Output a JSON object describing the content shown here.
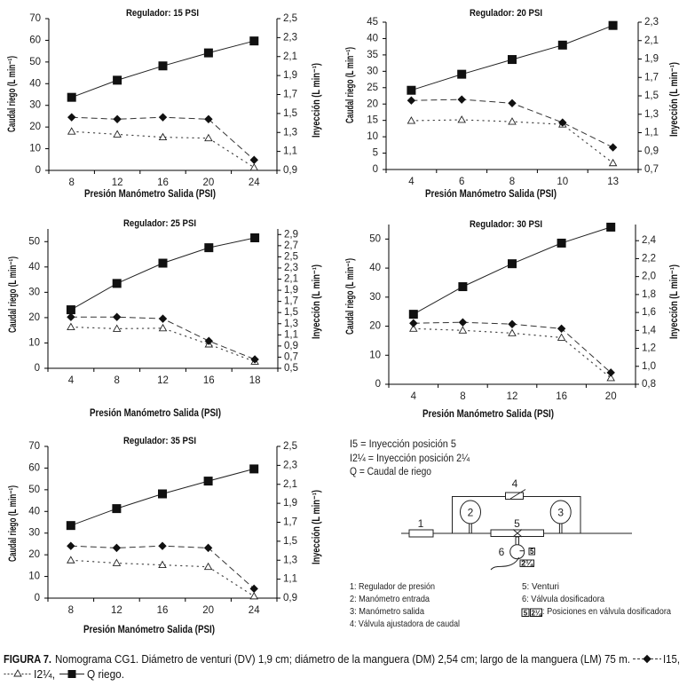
{
  "chart_data": [
    {
      "type": "line",
      "title": "Regulador: 15 PSI",
      "xlabel": "Presión Manómetro Salida (PSI)",
      "ylabel": "Caudal riego (L min⁻¹)",
      "y2label": "Inyección (L min⁻¹)",
      "categories": [
        "8",
        "12",
        "16",
        "20",
        "24"
      ],
      "ylim": [
        0,
        70
      ],
      "yticks": [
        0,
        10,
        20,
        30,
        40,
        50,
        60,
        70
      ],
      "y2lim": [
        0.9,
        2.5
      ],
      "y2ticks": [
        0.9,
        1.1,
        1.3,
        1.5,
        1.7,
        1.9,
        2.1,
        2.3,
        2.5
      ],
      "y2tick_labels": [
        "0,9",
        "1,1",
        "1,3",
        "1,5",
        "1,7",
        "1,9",
        "2,1",
        "2,3",
        "2,5"
      ],
      "grid": false,
      "series": [
        {
          "name": "Q riego",
          "axis": "left",
          "marker": "square",
          "line": "solid",
          "values": [
            33.7,
            41.6,
            48.2,
            54.2,
            59.7
          ]
        },
        {
          "name": "I15",
          "axis": "right",
          "marker": "diamond",
          "line": "dashed",
          "values": [
            1.46,
            1.44,
            1.46,
            1.44,
            1.01
          ]
        },
        {
          "name": "I2¼",
          "axis": "right",
          "marker": "triangle",
          "line": "dotted",
          "values": [
            1.31,
            1.28,
            1.25,
            1.24,
            0.93
          ]
        }
      ]
    },
    {
      "type": "line",
      "title": "Regulador: 20 PSI",
      "xlabel": "Presión Manómetro Salida (PSI)",
      "ylabel": "Caudal riego (L min⁻¹)",
      "y2label": "Inyección (L min⁻¹)",
      "categories": [
        "4",
        "6",
        "8",
        "10",
        "13"
      ],
      "ylim": [
        0,
        45
      ],
      "yticks": [
        0,
        5,
        10,
        15,
        20,
        25,
        30,
        35,
        40,
        45
      ],
      "y2lim": [
        0.7,
        2.3
      ],
      "y2ticks": [
        0.7,
        0.9,
        1.1,
        1.3,
        1.5,
        1.7,
        1.9,
        2.1,
        2.3
      ],
      "y2tick_labels": [
        "0,7",
        "0,9",
        "1,1",
        "1,3",
        "1,5",
        "1,7",
        "1,9",
        "2,1",
        "2,3"
      ],
      "grid": false,
      "series": [
        {
          "name": "Q riego",
          "axis": "left",
          "marker": "square",
          "line": "solid",
          "values": [
            24.2,
            29.1,
            33.6,
            38.0,
            44.0
          ]
        },
        {
          "name": "I15",
          "axis": "right",
          "marker": "diamond",
          "line": "dashed",
          "values": [
            1.45,
            1.46,
            1.42,
            1.21,
            0.94
          ]
        },
        {
          "name": "I2¼",
          "axis": "right",
          "marker": "triangle",
          "line": "dotted",
          "values": [
            1.23,
            1.24,
            1.22,
            1.19,
            0.77
          ]
        }
      ]
    },
    {
      "type": "line",
      "title": "Regulador: 25 PSI",
      "xlabel": "Presión Manómetro Salida (PSI)",
      "ylabel": "Caudal riego (L min⁻¹)",
      "y2label": "Inyección (L min⁻¹)",
      "categories": [
        "4",
        "8",
        "12",
        "16",
        "18"
      ],
      "ylim": [
        0,
        55
      ],
      "yticks": [
        0,
        10,
        20,
        30,
        40,
        50
      ],
      "y2lim": [
        0.5,
        3.0
      ],
      "y2ticks": [
        0.5,
        0.7,
        0.9,
        1.1,
        1.3,
        1.5,
        1.7,
        1.9,
        2.1,
        2.3,
        2.5,
        2.7,
        2.9
      ],
      "y2tick_labels": [
        "0,5",
        "0,7",
        "0,9",
        "1,1",
        "1,3",
        "1,5",
        "1,7",
        "1,9",
        "2,1",
        "2,3",
        "2,5",
        "2,7",
        "2,9"
      ],
      "grid": false,
      "series": [
        {
          "name": "Q riego",
          "axis": "left",
          "marker": "square",
          "line": "solid",
          "values": [
            23.1,
            33.5,
            41.5,
            47.6,
            51.5
          ]
        },
        {
          "name": "I15",
          "axis": "right",
          "marker": "diamond",
          "line": "dashed",
          "values": [
            1.42,
            1.42,
            1.39,
            0.99,
            0.66
          ]
        },
        {
          "name": "I2¼",
          "axis": "right",
          "marker": "triangle",
          "line": "dotted",
          "values": [
            1.24,
            1.21,
            1.22,
            0.93,
            0.62
          ]
        }
      ]
    },
    {
      "type": "line",
      "title": "Regulador: 30 PSI",
      "xlabel": "Presión Manómetro Salida (PSI)",
      "ylabel": "Caudal riego (L min⁻¹)",
      "y2label": "Inyección (L min⁻¹)",
      "categories": [
        "4",
        "8",
        "12",
        "16",
        "20"
      ],
      "ylim": [
        0,
        55
      ],
      "yticks": [
        0,
        10,
        20,
        30,
        40,
        50
      ],
      "y2lim": [
        0.8,
        2.58
      ],
      "y2ticks": [
        0.8,
        1.0,
        1.2,
        1.4,
        1.6,
        1.8,
        2.0,
        2.2,
        2.4
      ],
      "y2tick_labels": [
        "0,8",
        "1,0",
        "1,2",
        "1,4",
        "1,6",
        "1,8",
        "2,0",
        "2,2",
        "2,4"
      ],
      "grid": false,
      "series": [
        {
          "name": "Q riego",
          "axis": "left",
          "marker": "square",
          "line": "solid",
          "values": [
            24.1,
            33.6,
            41.5,
            48.6,
            54.1
          ]
        },
        {
          "name": "I15",
          "axis": "right",
          "marker": "diamond",
          "line": "dashed",
          "values": [
            1.48,
            1.49,
            1.47,
            1.42,
            0.93
          ]
        },
        {
          "name": "I2¼",
          "axis": "right",
          "marker": "triangle",
          "line": "dotted",
          "values": [
            1.42,
            1.4,
            1.37,
            1.32,
            0.87
          ]
        }
      ]
    },
    {
      "type": "line",
      "title": "Regulador: 35 PSI",
      "xlabel": "Presión Manómetro Salida (PSI)",
      "ylabel": "Caudal riego (L min⁻¹)",
      "y2label": "Inyección (L min⁻¹)",
      "categories": [
        "8",
        "12",
        "16",
        "20",
        "24"
      ],
      "ylim": [
        0,
        70
      ],
      "yticks": [
        0,
        10,
        20,
        30,
        40,
        50,
        60,
        70
      ],
      "y2lim": [
        0.9,
        2.5
      ],
      "y2ticks": [
        0.9,
        1.1,
        1.3,
        1.5,
        1.7,
        1.9,
        2.1,
        2.3,
        2.5
      ],
      "y2tick_labels": [
        "0,9",
        "1,1",
        "1,3",
        "1,5",
        "1,7",
        "1,9",
        "2,1",
        "2,3",
        "2,5"
      ],
      "grid": false,
      "series": [
        {
          "name": "Q riego",
          "axis": "left",
          "marker": "square",
          "line": "solid",
          "values": [
            33.5,
            41.3,
            48.1,
            54.0,
            59.6
          ]
        },
        {
          "name": "I15",
          "axis": "right",
          "marker": "diamond",
          "line": "dashed",
          "values": [
            1.45,
            1.43,
            1.45,
            1.43,
            1.0
          ]
        },
        {
          "name": "I2¼",
          "axis": "right",
          "marker": "triangle",
          "line": "dotted",
          "values": [
            1.3,
            1.27,
            1.25,
            1.23,
            0.92
          ]
        }
      ]
    }
  ],
  "legend": {
    "lines": [
      "I5 = Inyección posición 5",
      "I2¼ = Inyección posición 2¼",
      "Q = Caudal de riego"
    ]
  },
  "diagram": {
    "labels": {
      "regulator": "1",
      "manometer_in": "2",
      "manometer_out": "3",
      "valve": "4",
      "venturi": "5",
      "dosing_valve": "6"
    },
    "positions": [
      "5",
      "2¼"
    ]
  },
  "components": {
    "col1": [
      "1: Regulador de presión",
      "2: Manómetro entrada",
      "3: Manómetro salida",
      "4: Válvula ajustadora de caudal"
    ],
    "col2": [
      "5: Venturi",
      "6: Válvula dosificadora"
    ],
    "positions_note": {
      "boxes": [
        "5",
        "2¼"
      ],
      "text": ": Posiciones en válvula dosificadora"
    }
  },
  "caption": {
    "label": "FIGURA 7.",
    "text": "Nomograma CG1. Diámetro de venturi (DV) 1,9 cm; diámetro de la manguera (DM) 2,54 cm; largo de la manguera (LM) 75 m.",
    "legend": [
      {
        "series": "I15",
        "text": "I15,"
      },
      {
        "series": "I2¼",
        "text": "I2¼,"
      },
      {
        "series": "Q riego",
        "text": "Q riego."
      }
    ]
  }
}
